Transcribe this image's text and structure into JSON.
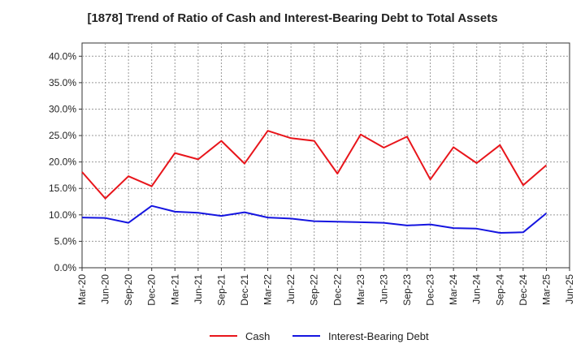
{
  "chart_data": {
    "type": "line",
    "title": "[1878]  Trend of Ratio of Cash and Interest-Bearing Debt to Total Assets",
    "xlabel": "",
    "ylabel": "",
    "ylim": [
      0,
      0.425
    ],
    "yticks": [
      "0.0%",
      "5.0%",
      "10.0%",
      "15.0%",
      "20.0%",
      "25.0%",
      "30.0%",
      "35.0%",
      "40.0%"
    ],
    "ytick_values": [
      0,
      0.05,
      0.1,
      0.15,
      0.2,
      0.25,
      0.3,
      0.35,
      0.4
    ],
    "categories": [
      "Mar-20",
      "Jun-20",
      "Sep-20",
      "Dec-20",
      "Mar-21",
      "Jun-21",
      "Sep-21",
      "Dec-21",
      "Mar-22",
      "Jun-22",
      "Sep-22",
      "Dec-22",
      "Mar-23",
      "Jun-23",
      "Sep-23",
      "Dec-23",
      "Mar-24",
      "Jun-24",
      "Sep-24",
      "Dec-24",
      "Mar-25",
      "Jun-25"
    ],
    "grid": true,
    "legend_position": "bottom",
    "series": [
      {
        "name": "Cash",
        "color": "#e8151b",
        "values": [
          0.181,
          0.131,
          0.173,
          0.154,
          0.217,
          0.205,
          0.24,
          0.197,
          0.259,
          0.245,
          0.24,
          0.178,
          0.252,
          0.227,
          0.248,
          0.167,
          0.228,
          0.198,
          0.232,
          0.156,
          0.194,
          null
        ]
      },
      {
        "name": "Interest-Bearing Debt",
        "color": "#1515e0",
        "values": [
          0.095,
          0.094,
          0.085,
          0.117,
          0.106,
          0.104,
          0.098,
          0.105,
          0.095,
          0.093,
          0.088,
          0.087,
          0.086,
          0.085,
          0.08,
          0.082,
          0.075,
          0.074,
          0.066,
          0.067,
          0.103,
          null
        ]
      }
    ]
  }
}
